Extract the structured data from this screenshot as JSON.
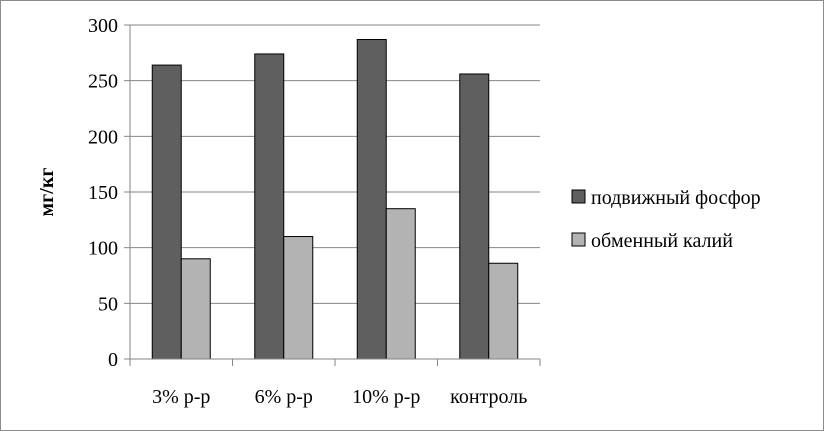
{
  "chart_data": {
    "type": "bar",
    "title": "",
    "xlabel": "",
    "ylabel": "мг/кг",
    "ylim": [
      0,
      300
    ],
    "yticks": [
      0,
      50,
      100,
      150,
      200,
      250,
      300
    ],
    "grid": true,
    "legend_position": "right",
    "categories": [
      "3% р-р",
      "6% р-р",
      "10% р-р",
      "контроль"
    ],
    "series": [
      {
        "name": "подвижный фосфор",
        "values": [
          264,
          274,
          287,
          256
        ],
        "color": "#5f5f5f"
      },
      {
        "name": "обменный калий",
        "values": [
          90,
          110,
          135,
          86
        ],
        "color": "#b3b3b3"
      }
    ]
  }
}
